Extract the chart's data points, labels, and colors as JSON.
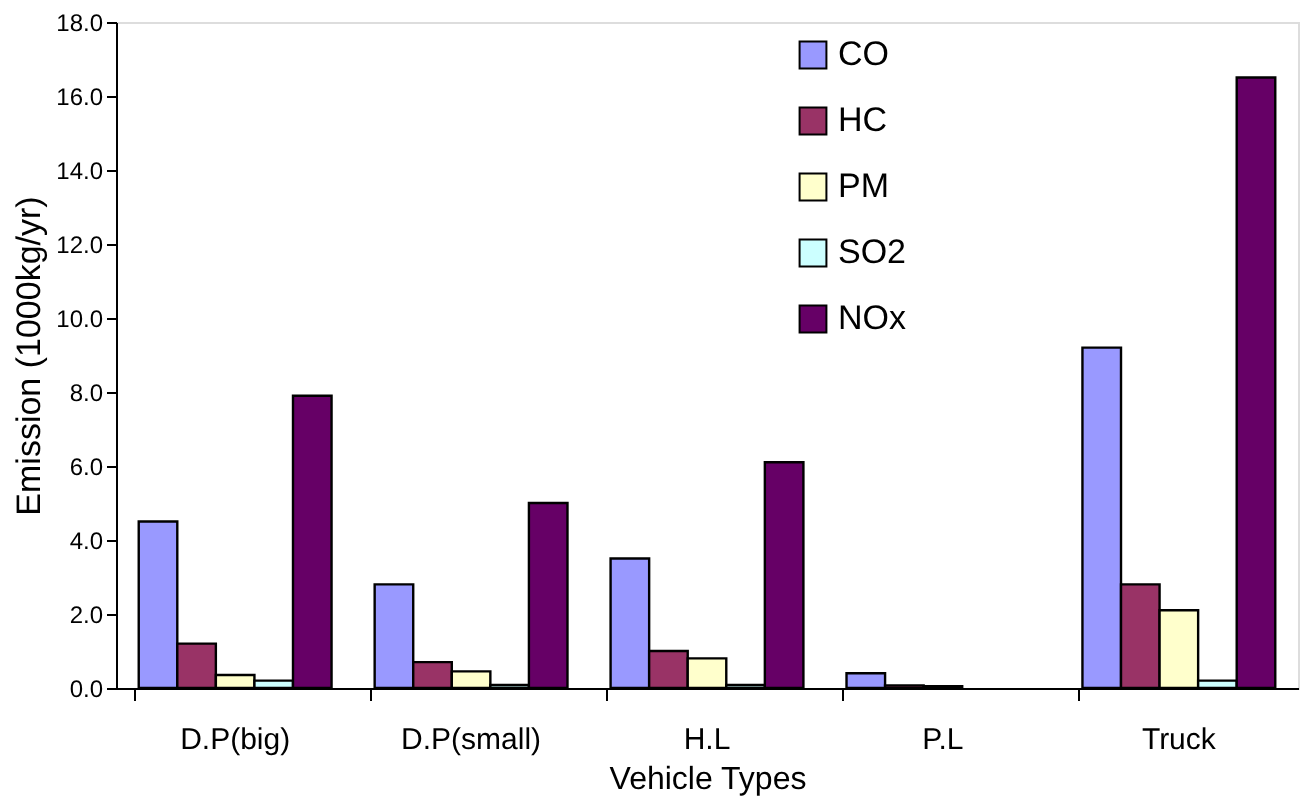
{
  "chart_data": {
    "type": "bar",
    "xlabel": "Vehicle Types",
    "ylabel": "Emission (1000kg/yr)",
    "categories": [
      "D.P(big)",
      "D.P(small)",
      "H.L",
      "P.L",
      "Truck"
    ],
    "series": [
      {
        "name": "CO",
        "color": "#9999ff",
        "values": [
          4.5,
          2.8,
          3.5,
          0.4,
          9.2
        ]
      },
      {
        "name": "HC",
        "color": "#993366",
        "values": [
          1.2,
          0.7,
          1.0,
          0.07,
          2.8
        ]
      },
      {
        "name": "PM",
        "color": "#ffffcc",
        "values": [
          0.35,
          0.45,
          0.8,
          0.05,
          2.1
        ]
      },
      {
        "name": "SO2",
        "color": "#ccffff",
        "values": [
          0.2,
          0.08,
          0.08,
          null,
          0.2
        ]
      },
      {
        "name": "NOx",
        "color": "#660066",
        "values": [
          7.9,
          5.0,
          6.1,
          null,
          16.5
        ]
      }
    ],
    "ylim": [
      0,
      18
    ],
    "yticks": [
      {
        "value": 0,
        "label": "0.0"
      },
      {
        "value": 2,
        "label": "2.0"
      },
      {
        "value": 4,
        "label": "4.0"
      },
      {
        "value": 6,
        "label": "6.0"
      },
      {
        "value": 8,
        "label": "8.0"
      },
      {
        "value": 10,
        "label": "10.0"
      },
      {
        "value": 12,
        "label": "12.0"
      },
      {
        "value": 14,
        "label": "14.0"
      },
      {
        "value": 16,
        "label": "16.0"
      },
      {
        "value": 18,
        "label": "18.0"
      }
    ],
    "grid": false,
    "legend": "top right"
  }
}
